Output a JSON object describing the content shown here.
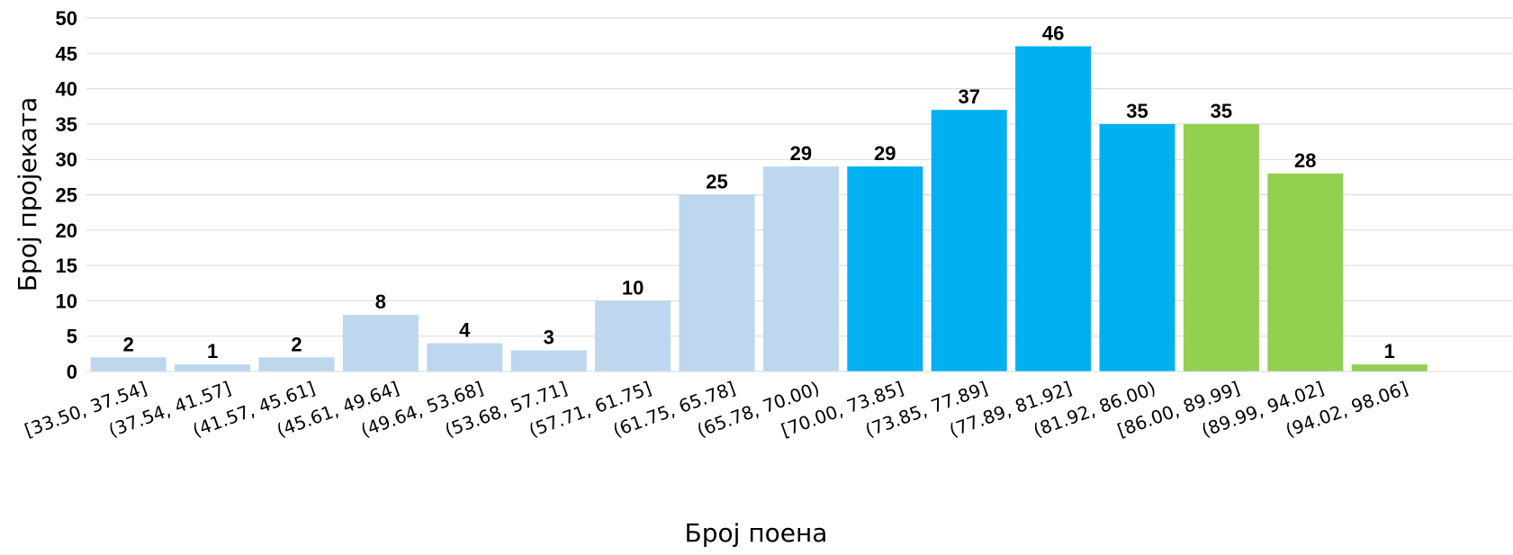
{
  "chart_data": {
    "type": "bar",
    "title": "",
    "xlabel": "Број поена",
    "ylabel": "Број пројеката",
    "ylim": [
      0,
      50
    ],
    "yticks": [
      "0",
      "5",
      "10",
      "15",
      "20",
      "25",
      "30",
      "35",
      "40",
      "45",
      "50"
    ],
    "grid": "horizontal",
    "categories": [
      "[33.50, 37.54]",
      "(37.54, 41.57]",
      "(41.57, 45.61]",
      "(45.61, 49.64]",
      "(49.64, 53.68]",
      "(53.68, 57.71]",
      "(57.71, 61.75]",
      "(61.75, 65.78]",
      "(65.78, 70.00)",
      "[70.00, 73.85]",
      "(73.85, 77.89]",
      "(77.89, 81.92]",
      "(81.92, 86.00)",
      "[86.00, 89.99]",
      "(89.99, 94.02]",
      "(94.02, 98.06]"
    ],
    "values": [
      2,
      1,
      2,
      8,
      4,
      3,
      10,
      25,
      29,
      29,
      37,
      46,
      35,
      35,
      28,
      1
    ],
    "bar_colors": [
      "#bdd7ee",
      "#bdd7ee",
      "#bdd7ee",
      "#bdd7ee",
      "#bdd7ee",
      "#bdd7ee",
      "#bdd7ee",
      "#bdd7ee",
      "#bdd7ee",
      "#00b0f0",
      "#00b0f0",
      "#00b0f0",
      "#00b0f0",
      "#92d050",
      "#92d050",
      "#92d050"
    ],
    "gridline_color": "#d9d9d9"
  }
}
